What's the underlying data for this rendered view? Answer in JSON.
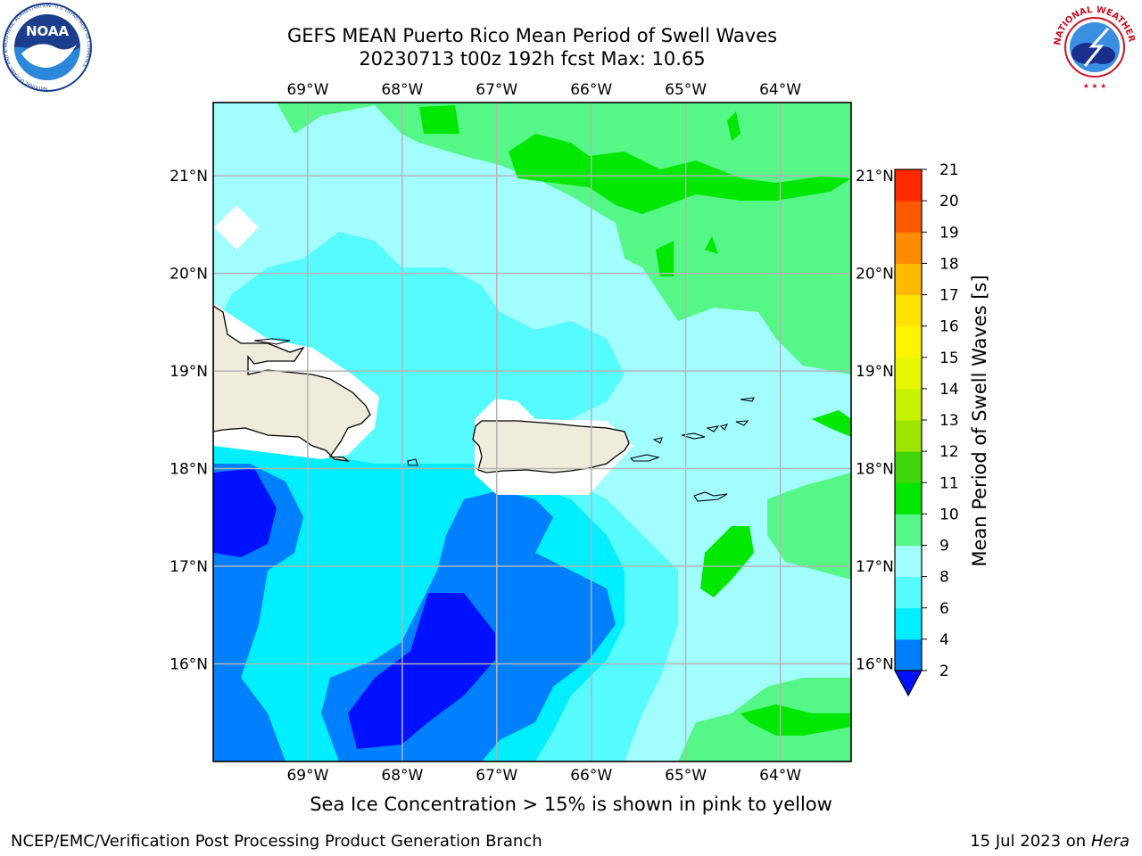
{
  "header": {
    "title_line1": "GEFS MEAN Puerto Rico Mean Period of Swell Waves",
    "title_line2": "20230713 t00z 192h fcst   Max: 10.65"
  },
  "logos": {
    "left": {
      "name": "noaa-logo",
      "text": "NOAA",
      "ring_text": "NATIONAL OCEANIC AND ATMOSPHERIC ADMINISTRATION · U.S. DEPARTMENT OF COMMERCE"
    },
    "right": {
      "name": "nws-logo",
      "ring_text": "NATIONAL WEATHER SERVICE"
    }
  },
  "map": {
    "lon_ticks": [
      "69°W",
      "68°W",
      "67°W",
      "66°W",
      "65°W",
      "64°W"
    ],
    "lat_ticks": [
      "21°N",
      "20°N",
      "19°N",
      "18°N",
      "17°N",
      "16°N"
    ],
    "lon_range": [
      -70.0,
      -63.25
    ],
    "lat_range": [
      15.0,
      21.75
    ],
    "gridlines": true,
    "land_color": "#efecdc",
    "grid_color": "#b4b4b4"
  },
  "colorbar": {
    "label": "Mean Period of Swell Waves [s]",
    "ticks": [
      "2",
      "4",
      "6",
      "8",
      "9",
      "10",
      "11",
      "12",
      "13",
      "14",
      "15",
      "16",
      "17",
      "18",
      "19",
      "20",
      "21"
    ],
    "colors": [
      "#0011ff",
      "#0080ff",
      "#00eeff",
      "#55fbff",
      "#a2fdff",
      "#55f786",
      "#00e800",
      "#3fd60b",
      "#9ee600",
      "#c7f200",
      "#e7f500",
      "#fff500",
      "#ffe200",
      "#ffbb00",
      "#ff8c00",
      "#ff5a00",
      "#ff2a00",
      "#ff0000"
    ],
    "extend": "min"
  },
  "footer": {
    "subtitle": "Sea Ice Concentration > 15% is shown in pink to yellow",
    "left": "NCEP/EMC/Verification Post Processing Product Generation Branch",
    "right_date": "15 Jul 2023 on ",
    "right_host": "Hera"
  }
}
